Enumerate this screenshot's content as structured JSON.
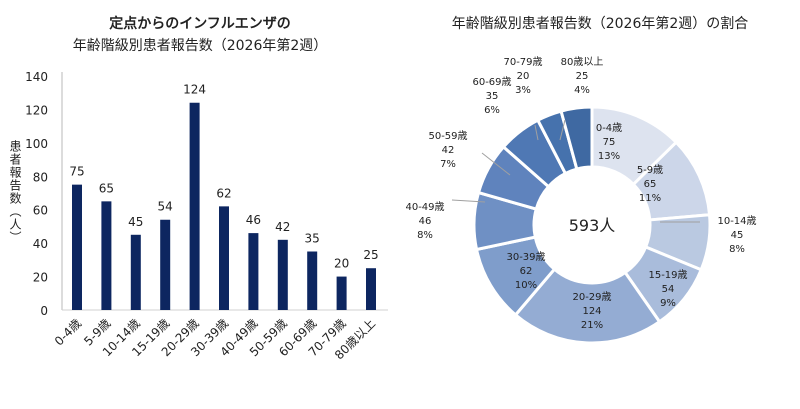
{
  "chart_data": [
    {
      "type": "bar",
      "title_line1": "定点からのインフルエンザの",
      "title_line2": "年齢階級別患者報告数（2026年第2週）",
      "ylabel": "患者報告数（人）",
      "xlabel": "",
      "ylim": [
        0,
        140
      ],
      "yticks": [
        0,
        20,
        40,
        60,
        80,
        100,
        120,
        140
      ],
      "grid": false,
      "color": "#0d2660",
      "categories": [
        "0-4歳",
        "5-9歳",
        "10-14歳",
        "15-19歳",
        "20-29歳",
        "30-39歳",
        "40-49歳",
        "50-59歳",
        "60-69歳",
        "70-79歳",
        "80歳以上"
      ],
      "values": [
        75,
        65,
        45,
        54,
        124,
        62,
        46,
        42,
        35,
        20,
        25
      ]
    },
    {
      "type": "pie",
      "donut": true,
      "title": "年齢階級別患者報告数（2026年第2週）の割合",
      "center_label": "593人",
      "categories": [
        "0-4歳",
        "5-9歳",
        "10-14歳",
        "15-19歳",
        "20-29歳",
        "30-39歳",
        "40-49歳",
        "50-59歳",
        "60-69歳",
        "70-79歳",
        "80歳以上"
      ],
      "values": [
        75,
        65,
        45,
        54,
        124,
        62,
        46,
        42,
        35,
        20,
        25
      ],
      "percent_labels": [
        "13%",
        "11%",
        "8%",
        "9%",
        "21%",
        "10%",
        "8%",
        "7%",
        "6%",
        "3%",
        "4%"
      ],
      "colors": [
        "#dde3ef",
        "#ccd6e9",
        "#bac9e1",
        "#a9bcdb",
        "#94acd3",
        "#7f9dcb",
        "#6f90c4",
        "#5f83bd",
        "#4f78b4",
        "#4672ad",
        "#3f69a2"
      ]
    }
  ]
}
